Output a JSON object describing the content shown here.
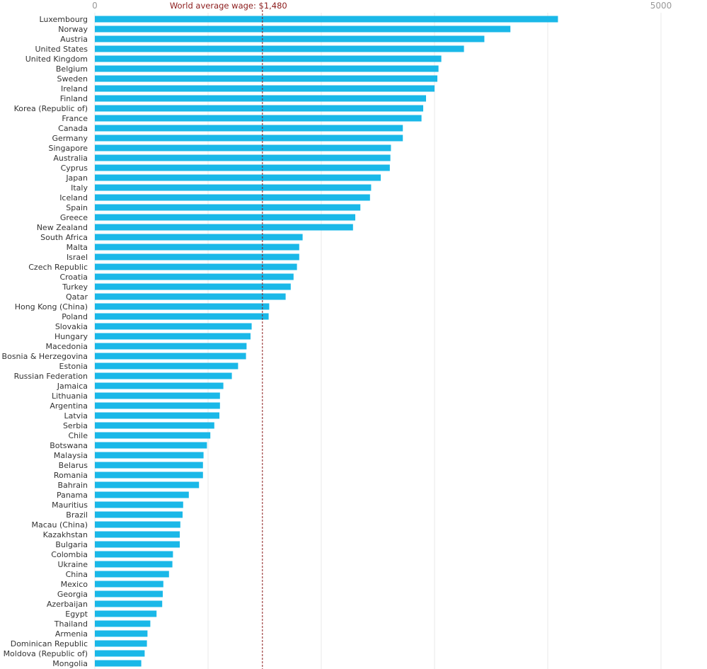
{
  "chart_data": {
    "type": "bar",
    "orientation": "horizontal",
    "title": "",
    "xlabel": "",
    "ylabel": "",
    "xlim": [
      0,
      5000
    ],
    "x_ticks": [
      {
        "value": 0,
        "label": "0"
      },
      {
        "value": 5000,
        "label": "5000"
      }
    ],
    "gridlines": [
      0,
      1000,
      2000,
      3000,
      4000,
      5000
    ],
    "reference_line": {
      "value": 1480,
      "label": "World average wage: $1,480"
    },
    "colors": {
      "bar": "#1ab8e8",
      "reference": "#8b1a1a",
      "grid": "#e8e8e8"
    },
    "categories": [
      "Luxembourg",
      "Norway",
      "Austria",
      "United States",
      "United Kingdom",
      "Belgium",
      "Sweden",
      "Ireland",
      "Finland",
      "Korea (Republic of)",
      "France",
      "Canada",
      "Germany",
      "Singapore",
      "Australia",
      "Cyprus",
      "Japan",
      "Italy",
      "Iceland",
      "Spain",
      "Greece",
      "New Zealand",
      "South Africa",
      "Malta",
      "Israel",
      "Czech Republic",
      "Croatia",
      "Turkey",
      "Qatar",
      "Hong Kong (China)",
      "Poland",
      "Slovakia",
      "Hungary",
      "Macedonia",
      "Bosnia & Herzegovina",
      "Estonia",
      "Russian Federation",
      "Jamaica",
      "Lithuania",
      "Argentina",
      "Latvia",
      "Serbia",
      "Chile",
      "Botswana",
      "Malaysia",
      "Belarus",
      "Romania",
      "Bahrain",
      "Panama",
      "Mauritius",
      "Brazil",
      "Macau (China)",
      "Kazakhstan",
      "Bulgaria",
      "Colombia",
      "Ukraine",
      "China",
      "Mexico",
      "Georgia",
      "Azerbaijan",
      "Egypt",
      "Thailand",
      "Armenia",
      "Dominican Republic",
      "Moldova (Republic of)",
      "Mongolia"
    ],
    "values": [
      4090,
      3670,
      3440,
      3260,
      3060,
      3035,
      3025,
      3000,
      2925,
      2900,
      2885,
      2720,
      2720,
      2615,
      2610,
      2605,
      2525,
      2440,
      2430,
      2345,
      2300,
      2280,
      1835,
      1805,
      1805,
      1785,
      1755,
      1730,
      1685,
      1540,
      1535,
      1385,
      1375,
      1340,
      1335,
      1265,
      1210,
      1135,
      1105,
      1105,
      1100,
      1055,
      1020,
      990,
      960,
      955,
      955,
      920,
      830,
      780,
      775,
      755,
      750,
      750,
      690,
      685,
      655,
      605,
      600,
      595,
      545,
      490,
      465,
      460,
      440,
      410
    ]
  }
}
